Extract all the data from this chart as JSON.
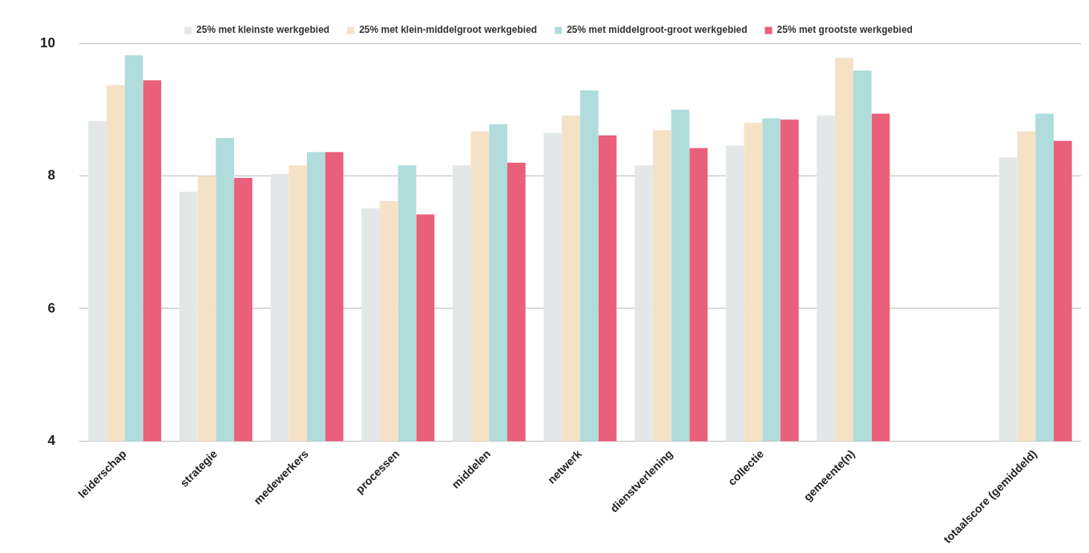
{
  "chart_data": {
    "type": "bar",
    "categories": [
      "leiderschap",
      "strategie",
      "medewerkers",
      "processen",
      "middelen",
      "netwerk",
      "dienstverlening",
      "collectie",
      "gemeente(n)",
      null,
      "totaalscore (gemiddeld)"
    ],
    "series": [
      {
        "name": "25% met kleinste werkgebied",
        "color": "#e3e7e8",
        "values": [
          8.83,
          7.76,
          8.03,
          7.51,
          8.16,
          8.65,
          8.16,
          8.46,
          8.91,
          null,
          8.28
        ]
      },
      {
        "name": "25% met klein-middelgroot werkgebied",
        "color": "#f5e1c6",
        "values": [
          9.37,
          8.0,
          8.16,
          7.62,
          8.67,
          8.91,
          8.69,
          8.8,
          9.78,
          null,
          8.67
        ]
      },
      {
        "name": "25% met middelgroot-groot werkgebied",
        "color": "#b0dcdc",
        "values": [
          9.82,
          8.57,
          8.36,
          8.16,
          8.78,
          9.29,
          9.0,
          8.87,
          9.59,
          null,
          8.94
        ]
      },
      {
        "name": "25% met grootste werkgebied",
        "color": "#ea5f7a",
        "values": [
          9.44,
          7.97,
          8.36,
          7.42,
          8.2,
          8.61,
          8.42,
          8.85,
          8.94,
          null,
          8.53
        ]
      }
    ],
    "ylim": [
      4,
      10
    ],
    "yticks": [
      4,
      6,
      8,
      10
    ],
    "grid": "y",
    "legend": "top"
  }
}
